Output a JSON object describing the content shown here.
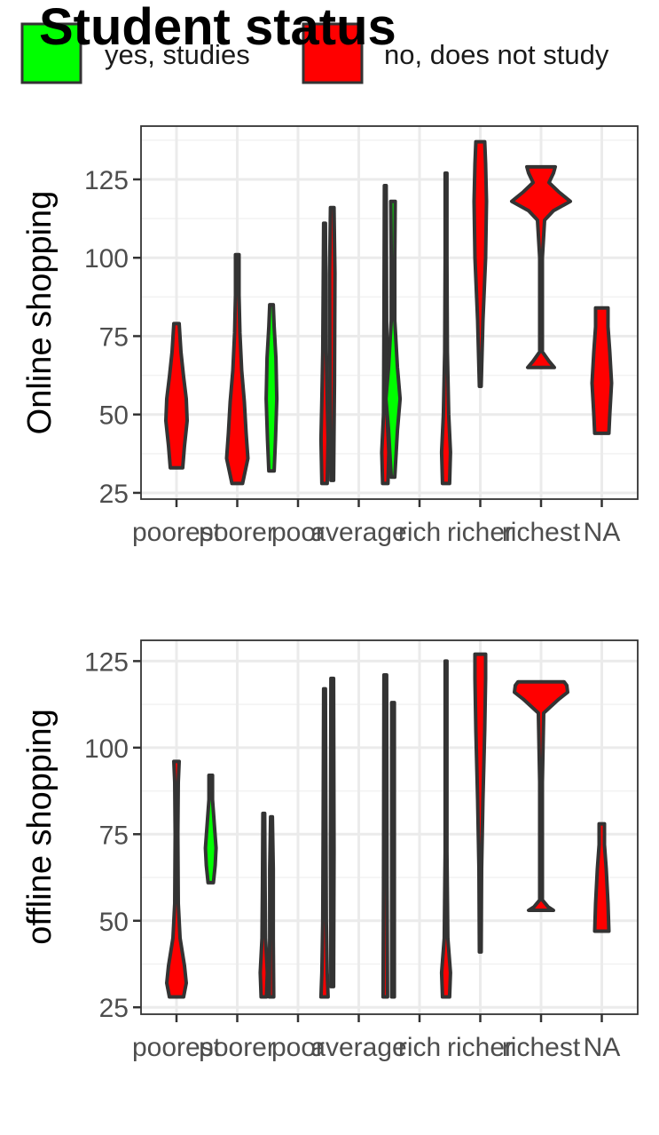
{
  "legend": {
    "title": "Student status",
    "items": [
      {
        "label": "yes, studies",
        "color": "#00ff00"
      },
      {
        "label": "no, does not study",
        "color": "#ff0000"
      }
    ]
  },
  "chart_data": [
    {
      "type": "violin",
      "ylabel": "Online shopping",
      "xlabel": "",
      "categories": [
        "poorest",
        "poorer",
        "poor",
        "average",
        "rich",
        "richer",
        "richest",
        "NA"
      ],
      "ylim": [
        23,
        142
      ],
      "yticks": [
        25,
        50,
        75,
        100,
        125
      ],
      "grid": true,
      "violins": [
        {
          "category": "poorest",
          "group": "no, does not study",
          "color": "#ff0000",
          "offset": 0,
          "min": 33,
          "max": 79,
          "profile": [
            [
              33,
              7
            ],
            [
              40,
              9
            ],
            [
              48,
              12
            ],
            [
              55,
              11
            ],
            [
              62,
              8
            ],
            [
              70,
              5
            ],
            [
              79,
              3
            ]
          ]
        },
        {
          "category": "poorer",
          "group": "no, does not study",
          "color": "#ff0000",
          "offset": 0,
          "min": 28,
          "max": 101,
          "profile": [
            [
              28,
              6
            ],
            [
              36,
              12
            ],
            [
              44,
              10
            ],
            [
              54,
              8
            ],
            [
              64,
              5
            ],
            [
              76,
              3
            ],
            [
              88,
              2
            ],
            [
              101,
              2
            ]
          ]
        },
        {
          "category": "poor",
          "group": "yes, studies",
          "color": "#00ff00",
          "offset": -0.23,
          "min": 32,
          "max": 85,
          "profile": [
            [
              32,
              3
            ],
            [
              42,
              4.5
            ],
            [
              55,
              6
            ],
            [
              68,
              5
            ],
            [
              78,
              3
            ],
            [
              85,
              2
            ]
          ]
        },
        {
          "category": "poor",
          "group": "no, does not study",
          "color": "#ff0000",
          "offset": 0.23,
          "min": 28,
          "max": 111,
          "profile": [
            [
              28,
              3
            ],
            [
              42,
              4
            ],
            [
              55,
              3
            ],
            [
              70,
              2
            ],
            [
              90,
              1.5
            ],
            [
              111,
              1
            ]
          ]
        },
        {
          "category": "average",
          "group": "no, does not study",
          "color": "#ff0000",
          "offset": -0.23,
          "min": 29,
          "max": 116,
          "profile": [
            [
              29,
              1.5
            ],
            [
              60,
              2.5
            ],
            [
              95,
              3
            ],
            [
              116,
              2
            ]
          ]
        },
        {
          "category": "average",
          "group": "no, does not study",
          "color": "#ff0000",
          "offset": 0.23,
          "min": 28,
          "max": 123,
          "profile": [
            [
              28,
              3
            ],
            [
              38,
              4
            ],
            [
              50,
              2
            ],
            [
              80,
              1.5
            ],
            [
              123,
              1
            ]
          ]
        },
        {
          "category": "rich",
          "group": "yes, studies",
          "color": "#00ff00",
          "offset": -0.23,
          "min": 30,
          "max": 118,
          "profile": [
            [
              30,
              2
            ],
            [
              45,
              5
            ],
            [
              55,
              8
            ],
            [
              65,
              5
            ],
            [
              80,
              2
            ],
            [
              100,
              2
            ],
            [
              118,
              2.5
            ]
          ]
        },
        {
          "category": "rich",
          "group": "no, does not study",
          "color": "#ff0000",
          "offset": 0.23,
          "min": 28,
          "max": 127,
          "profile": [
            [
              28,
              4
            ],
            [
              38,
              5
            ],
            [
              50,
              3
            ],
            [
              70,
              1.5
            ],
            [
              100,
              1
            ],
            [
              127,
              1
            ]
          ]
        },
        {
          "category": "richer",
          "group": "no, does not study",
          "color": "#ff0000",
          "offset": 0,
          "min": 59,
          "max": 137,
          "profile": [
            [
              59,
              1
            ],
            [
              80,
              3
            ],
            [
              100,
              6
            ],
            [
              118,
              7
            ],
            [
              130,
              6
            ],
            [
              137,
              5
            ]
          ]
        },
        {
          "category": "richest",
          "group": "no, does not study",
          "color": "#ff0000",
          "offset": 0,
          "min": 65,
          "max": 129,
          "profile": [
            [
              65,
              15
            ],
            [
              67,
              9
            ],
            [
              70,
              1.5
            ],
            [
              100,
              1.5
            ],
            [
              112,
              4
            ],
            [
              115,
              14
            ],
            [
              118,
              33
            ],
            [
              121,
              20
            ],
            [
              124,
              9
            ],
            [
              127,
              14
            ],
            [
              129,
              16
            ]
          ]
        },
        {
          "category": "NA",
          "group": "no, does not study",
          "color": "#ff0000",
          "offset": 0,
          "min": 44,
          "max": 84,
          "profile": [
            [
              44,
              8
            ],
            [
              50,
              9
            ],
            [
              60,
              11
            ],
            [
              70,
              9
            ],
            [
              78,
              7
            ],
            [
              84,
              7
            ]
          ]
        }
      ]
    },
    {
      "type": "violin",
      "ylabel": "offline shopping",
      "xlabel": "",
      "categories": [
        "poorest",
        "poorer",
        "poor",
        "average",
        "rich",
        "richer",
        "richest",
        "NA"
      ],
      "ylim": [
        23,
        131
      ],
      "yticks": [
        25,
        50,
        75,
        100,
        125
      ],
      "grid": true,
      "violins": [
        {
          "category": "poorest",
          "group": "no, does not study",
          "color": "#ff0000",
          "offset": 0,
          "min": 28,
          "max": 96,
          "profile": [
            [
              28,
              8
            ],
            [
              32,
              11
            ],
            [
              37,
              9
            ],
            [
              45,
              4
            ],
            [
              55,
              2
            ],
            [
              75,
              1.5
            ],
            [
              90,
              2
            ],
            [
              96,
              3
            ]
          ]
        },
        {
          "category": "poorer",
          "group": "yes, studies",
          "color": "#00ff00",
          "offset": -0.23,
          "min": 61,
          "max": 92,
          "profile": [
            [
              61,
              3
            ],
            [
              66,
              5
            ],
            [
              71,
              6
            ],
            [
              78,
              4
            ],
            [
              85,
              2
            ],
            [
              92,
              2
            ]
          ]
        },
        {
          "category": "poorer",
          "group": "no, does not study",
          "color": "#ff0000",
          "offset": 0.23,
          "min": 28,
          "max": 81,
          "profile": [
            [
              28,
              3
            ],
            [
              35,
              4
            ],
            [
              45,
              2
            ],
            [
              60,
              1.5
            ],
            [
              81,
              1
            ]
          ]
        },
        {
          "category": "poor",
          "group": "no, does not study",
          "color": "#ff0000",
          "offset": -0.23,
          "min": 28,
          "max": 80,
          "profile": [
            [
              28,
              2.5
            ],
            [
              45,
              2
            ],
            [
              65,
              2
            ],
            [
              80,
              1
            ]
          ]
        },
        {
          "category": "poor",
          "group": "no, does not study",
          "color": "#ff0000",
          "offset": 0.23,
          "min": 28,
          "max": 117,
          "profile": [
            [
              28,
              4
            ],
            [
              35,
              3
            ],
            [
              50,
              2
            ],
            [
              80,
              1.5
            ],
            [
              117,
              1
            ]
          ]
        },
        {
          "category": "average",
          "group": "no, does not study",
          "color": "#ff0000",
          "offset": -0.23,
          "min": 31,
          "max": 120,
          "profile": [
            [
              31,
              1.5
            ],
            [
              70,
              2
            ],
            [
              120,
              1.5
            ]
          ]
        },
        {
          "category": "average",
          "group": "no, does not study",
          "color": "#ff0000",
          "offset": 0.23,
          "min": 28,
          "max": 121,
          "profile": [
            [
              28,
              2.5
            ],
            [
              60,
              2
            ],
            [
              121,
              1.5
            ]
          ]
        },
        {
          "category": "rich",
          "group": "no, does not study",
          "color": "#ff0000",
          "offset": -0.23,
          "min": 28,
          "max": 113,
          "profile": [
            [
              28,
              1.5
            ],
            [
              70,
              1.5
            ],
            [
              113,
              1.5
            ]
          ]
        },
        {
          "category": "rich",
          "group": "no, does not study",
          "color": "#ff0000",
          "offset": 0.23,
          "min": 28,
          "max": 125,
          "profile": [
            [
              28,
              4
            ],
            [
              35,
              5
            ],
            [
              45,
              2
            ],
            [
              70,
              1
            ],
            [
              125,
              1
            ]
          ]
        },
        {
          "category": "richer",
          "group": "no, does not study",
          "color": "#ff0000",
          "offset": 0,
          "min": 41,
          "max": 127,
          "profile": [
            [
              41,
              1
            ],
            [
              65,
              1.5
            ],
            [
              85,
              3
            ],
            [
              105,
              5
            ],
            [
              120,
              6
            ],
            [
              127,
              6
            ]
          ]
        },
        {
          "category": "richest",
          "group": "no, does not study",
          "color": "#ff0000",
          "offset": 0,
          "min": 53,
          "max": 119,
          "profile": [
            [
              53,
              14
            ],
            [
              54,
              8
            ],
            [
              56,
              1.5
            ],
            [
              90,
              1.5
            ],
            [
              110,
              3
            ],
            [
              114,
              20
            ],
            [
              116,
              30
            ],
            [
              118,
              29
            ],
            [
              119,
              26
            ]
          ]
        },
        {
          "category": "NA",
          "group": "no, does not study",
          "color": "#ff0000",
          "offset": 0,
          "min": 47,
          "max": 78,
          "profile": [
            [
              47,
              8
            ],
            [
              55,
              7
            ],
            [
              65,
              5
            ],
            [
              72,
              3
            ],
            [
              78,
              3
            ]
          ]
        }
      ]
    }
  ]
}
